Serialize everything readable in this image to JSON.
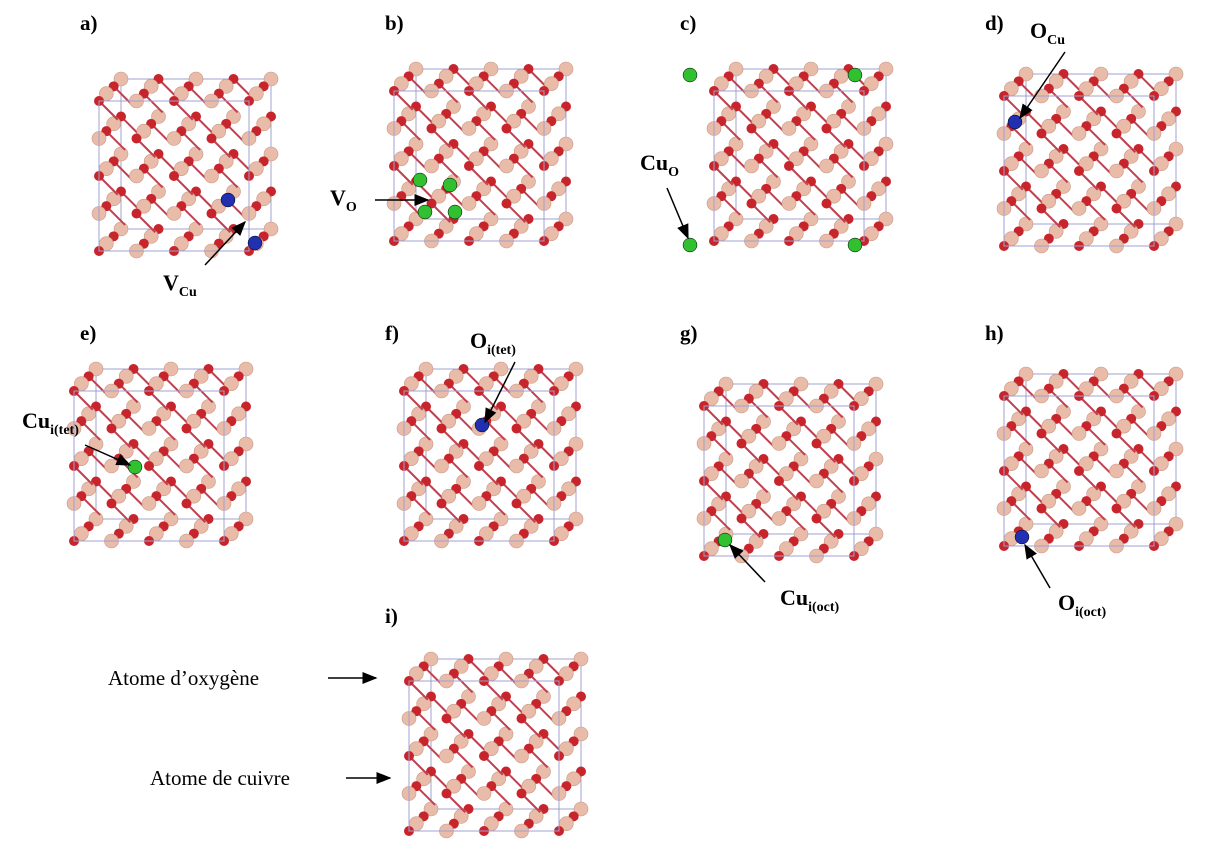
{
  "panels": [
    {
      "label": "a)",
      "defect": {
        "base": "V",
        "sub": "Cu"
      }
    },
    {
      "label": "b)",
      "defect": {
        "base": "V",
        "sub": "O"
      }
    },
    {
      "label": "c)",
      "defect": {
        "base": "Cu",
        "sub": "O"
      }
    },
    {
      "label": "d)",
      "defect": {
        "base": "O",
        "sub": "Cu"
      }
    },
    {
      "label": "e)",
      "defect": {
        "base": "Cu",
        "sub": "i(tet)"
      }
    },
    {
      "label": "f)",
      "defect": {
        "base": "O",
        "sub": "i(tet)"
      }
    },
    {
      "label": "g)",
      "defect": {
        "base": "Cu",
        "sub": "i(oct)"
      }
    },
    {
      "label": "h)",
      "defect": {
        "base": "O",
        "sub": "i(oct)"
      }
    },
    {
      "label": "i)"
    }
  ],
  "legend": {
    "oxygen": "Atome d’oxygène",
    "copper": "Atome de cuivre"
  }
}
